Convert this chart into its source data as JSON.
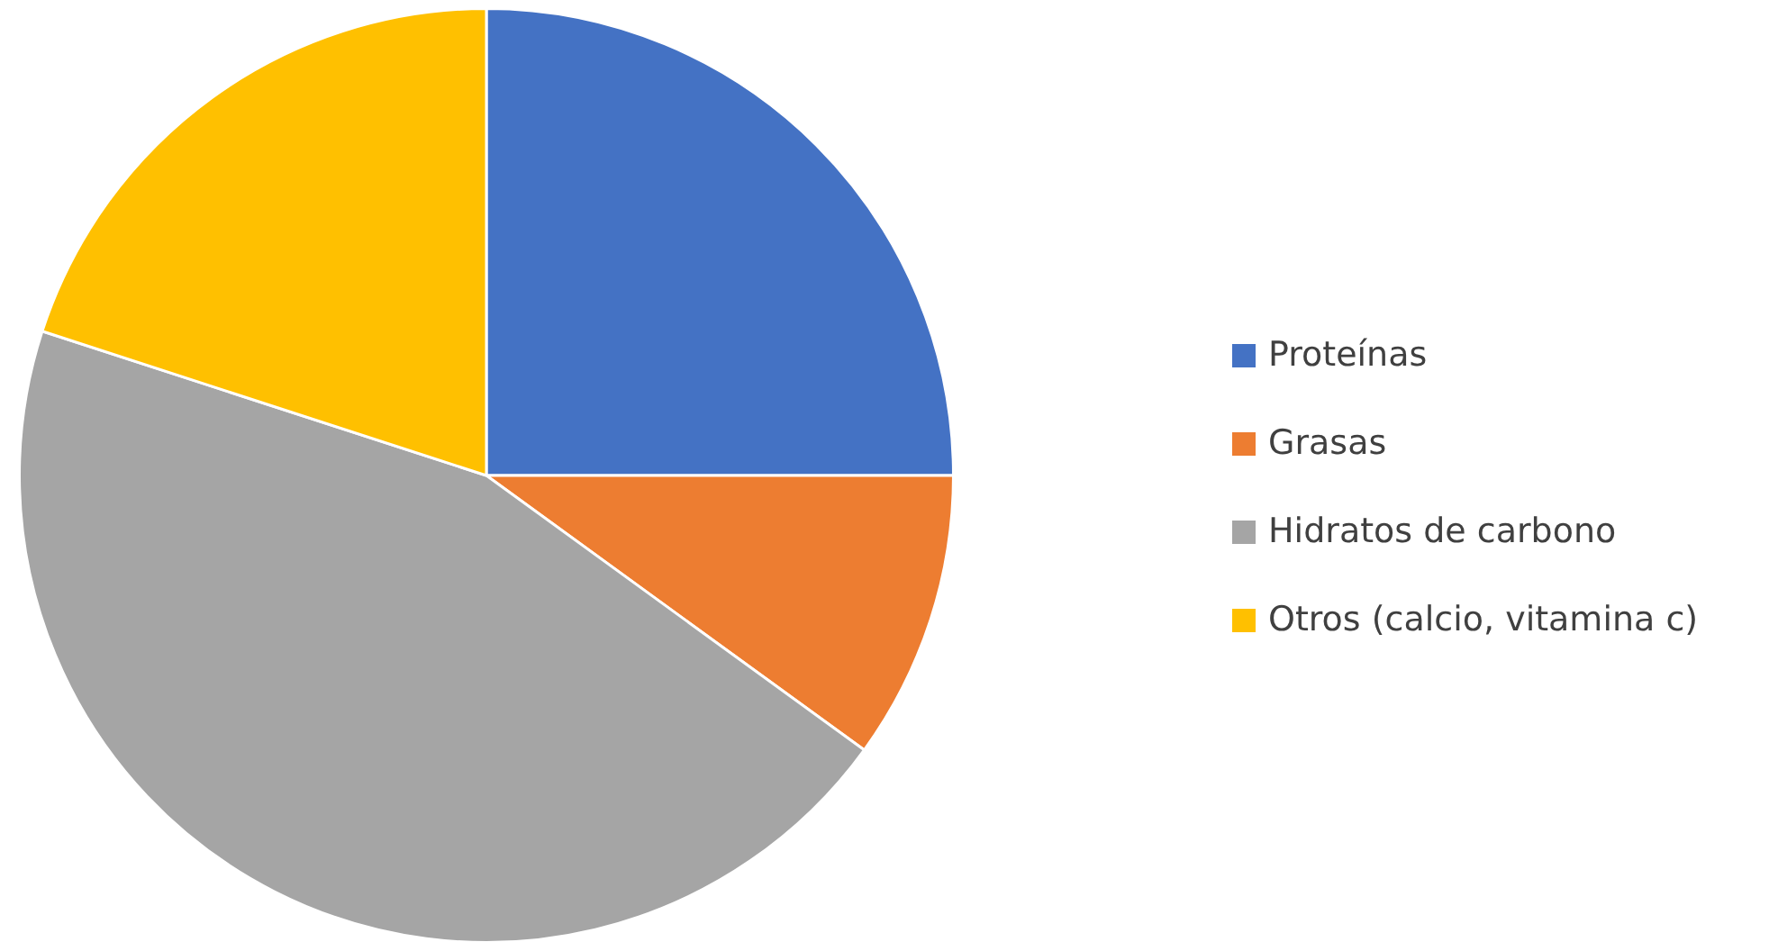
{
  "chart_data": {
    "type": "pie",
    "categories": [
      "Proteínas",
      "Grasas",
      "Hidratos de carbono",
      "Otros (calcio, vitamina c)"
    ],
    "values": [
      25,
      10,
      45,
      20
    ],
    "colors": [
      "#4472c4",
      "#ed7d31",
      "#a5a5a5",
      "#ffc000"
    ],
    "legend": "right"
  }
}
